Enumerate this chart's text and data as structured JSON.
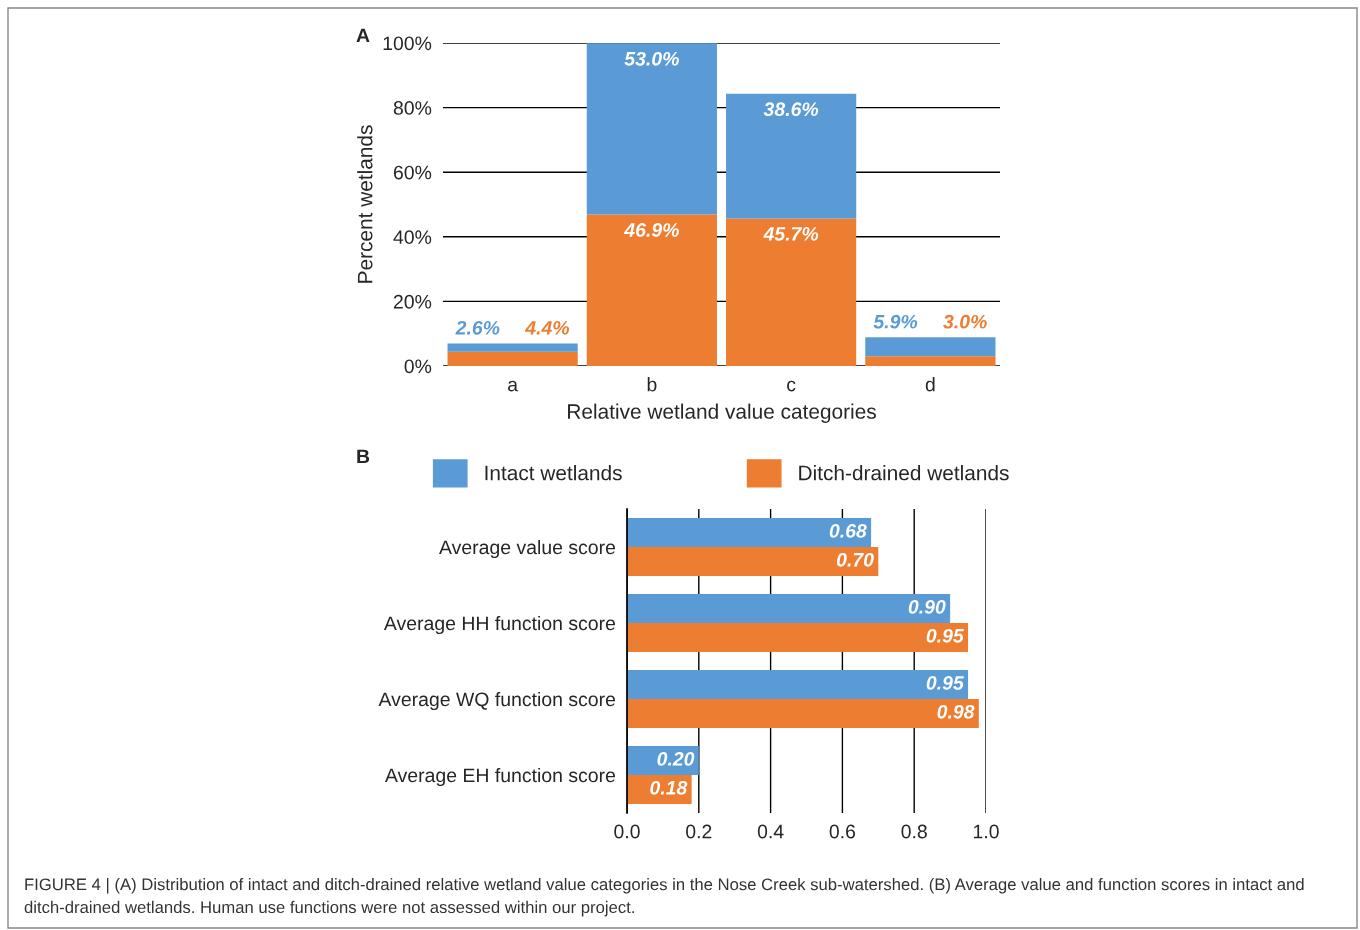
{
  "chart_data": [
    {
      "type": "bar",
      "stacked": true,
      "categories": [
        "a",
        "b",
        "c",
        "d"
      ],
      "ylabel": "Percent wetlands",
      "xlabel": "Relative wetland value categories",
      "series": [
        {
          "name": "Ditch-drained wetlands",
          "color": "#ed7d31",
          "values": [
            4.4,
            46.9,
            45.7,
            3.0
          ],
          "value_labels": [
            "4.4%",
            "46.9%",
            "45.7%",
            "3.0%"
          ]
        },
        {
          "name": "Intact wetlands",
          "color": "#5b9bd5",
          "values": [
            2.6,
            53.0,
            38.6,
            5.9
          ],
          "value_labels": [
            "2.6%",
            "53.0%",
            "38.6%",
            "5.9%"
          ]
        }
      ],
      "ylim": [
        0,
        100
      ],
      "yticks": [
        {
          "value": 0,
          "label": "0%"
        },
        {
          "value": 20,
          "label": "20%"
        },
        {
          "value": 40,
          "label": "40%"
        },
        {
          "value": 60,
          "label": "60%"
        },
        {
          "value": 80,
          "label": "80%"
        },
        {
          "value": 100,
          "label": "100%"
        }
      ],
      "grid": "y",
      "legend": "bottom",
      "annotations": [
        "A"
      ]
    },
    {
      "type": "bar",
      "orientation": "horizontal",
      "categories": [
        "Average value score",
        "Average HH function score",
        "Average WQ function score",
        "Average EH function score"
      ],
      "series": [
        {
          "color": "#5b9bd5",
          "values": [
            0.68,
            0.9,
            0.95,
            0.2
          ],
          "value_labels": [
            "0.68",
            "0.90",
            "0.95",
            "0.20"
          ]
        },
        {
          "color": "#ed7d31",
          "values": [
            0.7,
            0.95,
            0.98,
            0.18
          ],
          "value_labels": [
            "0.70",
            "0.95",
            "0.98",
            "0.18"
          ]
        }
      ],
      "xlim": [
        0,
        1.0
      ],
      "xticks": [
        {
          "value": 0,
          "label": "0.0"
        },
        0.2,
        0.4,
        0.6,
        0.8,
        {
          "value": 1.0,
          "label": "1.0"
        }
      ],
      "grid": "x",
      "annotations": [
        "B",
        "FIGURE 4 | (A) Distribution of intact and ditch-drained relative wetland value categories in the Nose Creek sub-watershed. (B) Average value and function scores in intact and ditch-drained wetlands. Human use functions were not assessed within our project."
      ]
    }
  ]
}
